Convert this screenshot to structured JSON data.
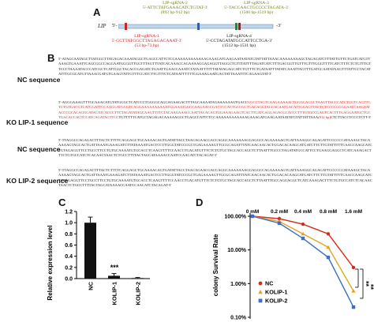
{
  "panelA": {
    "letter": "A",
    "gene_label": "LIP",
    "end5": "5'-",
    "end3": "-3'",
    "grna2": {
      "name": "LIP-sgRNA-2",
      "seq": "5'-ATTCTATGAAACATCTGTAT-3'",
      "range": "(893 bp-912 bp)"
    },
    "grna3": {
      "name": "LIP-sgRNA-3",
      "seq": "5'-TACCAACTGCCCCTAGATA-3'",
      "range": "(1500 bp-1519 bp)"
    },
    "grna1": {
      "name": "LIP-sgRNA-1",
      "seq": "5'-GCTTATGGCTTAGAGACAAAT-3'",
      "range": "(53 bp-73 bp)"
    },
    "grna4": {
      "name": "LIP-sgRNA-4",
      "seq": "5'-CCTAGATATGCCATTCCTGA-3'",
      "range": "(1512 bp-1531 bp)"
    }
  },
  "panelB": {
    "letter": "B",
    "labels": [
      "NC sequence",
      "KO LIP-1 sequence",
      "NC sequence",
      "KO LIP-2 sequence"
    ],
    "seq_nc1": "5'-ATAGCAATAGCTTATGGCTTAGAGACAAATAGGCTGAGCCATTCTCCAAAAAAAAAAAAGAAAGATGAAGAATAATATGTATTATTAAACAAAAAAAAGCTAGACATCTTTATTGTTCTGATCATGTTAAAGTGAAATTCAGCGGCCAGGAATGGGGTTGGTTTAGTTTATCACAAACCAGAAAAGGAGAGGTTAGGCTGTTTATTTTAGATCATCTTTGACGGTTGTTTGTTTGGGTTTTCATCTTTCTCTGTTTGTTCCCTAAAATACCCATCGCTCATTGGCTACACCGAGATCTGAATTGAACCAAATCTATAATTTTTTATATAGAGCATCTGTTTCTGATAATTTATATCAAATTAGTTTGATGCAATATAAGTTTATTCCTACATATTTGCGCATGTTAAACGATGTGAAGTATTGTTTCCATCTTGTTTCTCATAATTTTTTGGAAAGAATGACTATTAAATTTCAGAAGTAT-3'",
    "seq_ko1_pre": "5'-AGGGAAAGTTTGCAAACATGTATGGGCTCATCCCTGGGGCAGCAGAAGACTTTAGCAAAATAGAAAAAAGTGACC",
    "seq_ko1_red": "GGCCTAGTCAAGAAAAACTGGGCAGGCTAAGTTACCCATCTGGTCAGTTGTCTGTGACGTCATGGATTCCAAGGATGGGTCAGGAAAAAAAAAATGGAAATGGCCAAGAACCGACTCCACTGCCGCTGACAGGTACCACAATGACATTGGAGTTACTCTCCCCCGGGAATCAAGTATACCCGCACAGGCATACATCACCCTTCTAGATATAGCAAGTTTTCTACAAGAAACCAATTACACAGTGGAAAGAAGTCACTTGATCAGGAGACGCACCCTTTGTGCCGAGTCACTTTGAGGAATGCTGCTGACACCAGTCCATCAGATAGTTCC",
    "seq_ko1_mid": "TGTTTTTCATGCTAGAGACAAAAAGGCTGAGCCATTCTCCAAAAAAAAAAAAGAAAGATGAAGAATAATATGTATTATTAAA",
    "seq_ko1_red2": "(912 bp)",
    "seq_ko1_end": "CTCTTACCTCCCTCTT-3'",
    "seq_nc2": "5'-TTAGGCCAGAGACTTTACTCTTTTCAGGAGCTGCAAAACAGTGATATTACCTAACAGAACGACCAGGCAAAAAAAGGAGGCCAGAAAAAGTGATTAAAGGCAGAGATTCCCCCCATAAAGCTACAAAAAGTAGCACTGATTAAATGAAAGATCTTATAAAATGACTCCTTGGGTATCCCGCTGAGAAAAGTTGCGCAGATTTATCAACAACACTGGACACAAGCATGATCTTCTTGTATTTTTCAACCAAGCATCTGTAGAGGTTCCTGCCTTCCTGTGCAAAATGTGCACCTCAAGTTTTCCAACCTGACATGTTTCTCTGTGCTAGCACCAGCTCTTAATTTGCCCTAGATATGCCATTCCTGAAGGAGGCTCATCAAAGACTTTCTGTGCCATCTCACAACTAACTCTGCCTTTTACTAGCATAAAACCAATCCAACATCTACAGAT-3'",
    "seq_ko2": "5'-TTAGGCCAGAGACTTTACTCTTTTCAGGAGCTGCAAAACAGTGATATTACCTAACAGAACGACCAGGCAAAAAAAGGAGGCCAGAAAAAGTGATTAAAGGCAGAGATTCCCCCCATAAAGCTACAAAAAGTAGCACTGATTAAATGAAAGATCTTATAAAATGACTCCTTGGGTATCCCGCTGAGAAAAGTTGCGCAGATTTATCAACAACACTGGACACAAGCATGATCTTCTTGTATTTTTCAACCAAGCATCTGTAGAGGTTCCTGCCTTCCTGTGCAAAATGTGCACCTCAAGTTTTCCAACCTGACATGTTTCTCTGTGCTAGCACCAGCTCTTAATTTGCCAGGAGGCTCATCAAAGACTTTCTGTGCCATCTCACAACTAACTCTGCCTTTTACTAGCATAAAACCAATCCAACATCTACAGAT-3'"
  },
  "panelC": {
    "letter": "C",
    "ylabel": "Relative expression level",
    "categories": [
      "NC",
      "KOLIP-1",
      "KOLIP-2"
    ],
    "values": [
      1.0,
      0.05,
      0.01
    ],
    "errors": [
      0.1,
      0.04,
      0.01
    ],
    "ylim": [
      0,
      1.2
    ],
    "yticks": [
      "0.0",
      "0.2",
      "0.4",
      "0.6",
      "0.8",
      "1.0",
      "1.2"
    ],
    "sig": "***"
  },
  "panelD": {
    "letter": "D",
    "ylabel": "colony Survival Rate",
    "yticks": [
      "100.00%",
      "10.00%",
      "1.00%",
      "0.10%"
    ],
    "top_labels": [
      "0 mM",
      "0.2 mM",
      "0.4 mM",
      "0.8 mM",
      "1.6 mM"
    ],
    "legend": [
      "NC",
      "KOLIP-1",
      "KOLIP-2"
    ],
    "sig": [
      "**",
      "**"
    ],
    "colors": {
      "NC": "#d62a1d",
      "KOLIP-1": "#e6a21a",
      "KOLIP-2": "#3a6fc4"
    }
  },
  "chart_data": [
    {
      "type": "bar",
      "title": "",
      "xlabel": "",
      "ylabel": "Relative expression level",
      "categories": [
        "NC",
        "KOLIP-1",
        "KOLIP-2"
      ],
      "values": [
        1.0,
        0.05,
        0.01
      ],
      "ylim": [
        0,
        1.2
      ]
    },
    {
      "type": "line",
      "title": "",
      "xlabel": "",
      "ylabel": "colony Survival Rate",
      "x": [
        "0 mM",
        "0.2 mM",
        "0.4 mM",
        "0.8 mM",
        "1.6 mM"
      ],
      "yscale": "log",
      "ylim": [
        0.001,
        1.0
      ],
      "series": [
        {
          "name": "NC",
          "values": [
            1.0,
            0.85,
            0.58,
            0.3,
            0.03
          ]
        },
        {
          "name": "KOLIP-1",
          "values": [
            1.0,
            0.7,
            0.3,
            0.12,
            0.006
          ]
        },
        {
          "name": "KOLIP-2",
          "values": [
            1.0,
            0.62,
            0.22,
            0.06,
            0.002
          ]
        }
      ]
    }
  ]
}
